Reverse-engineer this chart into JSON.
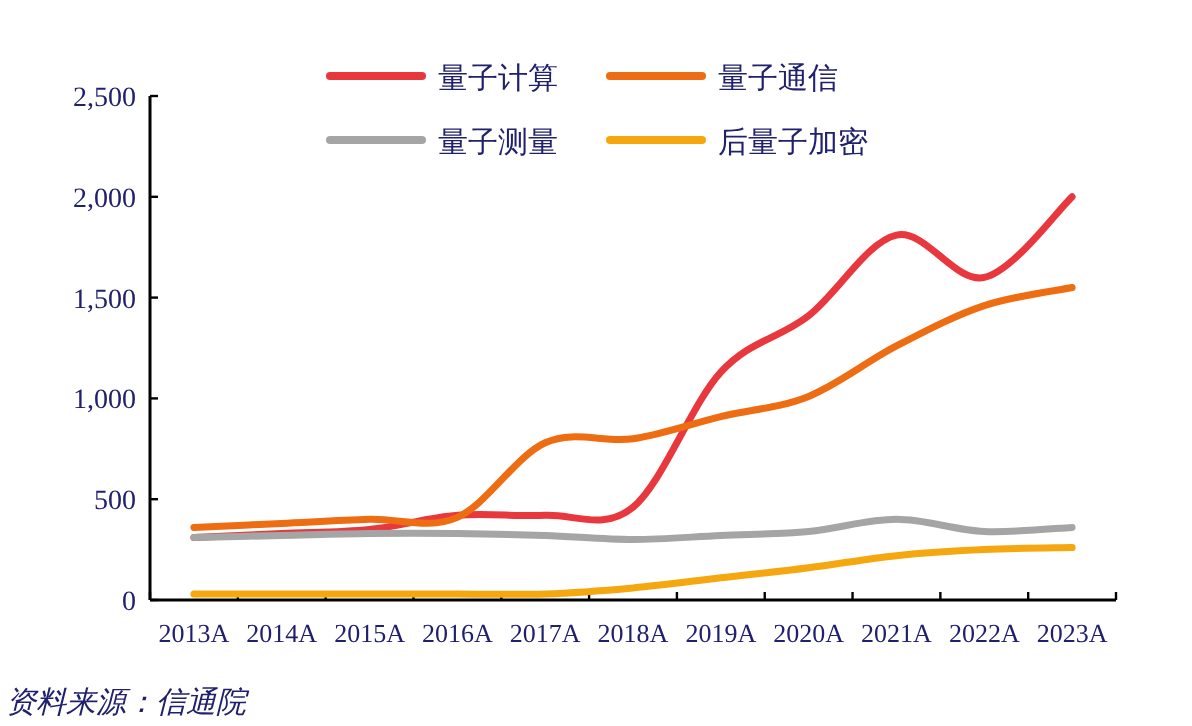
{
  "chart_data": {
    "type": "line",
    "categories": [
      "2013A",
      "2014A",
      "2015A",
      "2016A",
      "2017A",
      "2018A",
      "2019A",
      "2020A",
      "2021A",
      "2022A",
      "2023A"
    ],
    "series": [
      {
        "name": "量子计算",
        "color": "#e8383d",
        "values": [
          310,
          330,
          350,
          420,
          420,
          460,
          1130,
          1410,
          1810,
          1600,
          2000
        ]
      },
      {
        "name": "量子通信",
        "color": "#ee6c12",
        "values": [
          360,
          380,
          400,
          410,
          780,
          800,
          910,
          1010,
          1260,
          1460,
          1550
        ]
      },
      {
        "name": "量子测量",
        "color": "#a5a5a5",
        "values": [
          310,
          320,
          330,
          330,
          320,
          300,
          320,
          340,
          400,
          340,
          360
        ]
      },
      {
        "name": "后量子加密",
        "color": "#f5a70f",
        "values": [
          30,
          30,
          30,
          30,
          30,
          60,
          110,
          160,
          220,
          250,
          260
        ]
      }
    ],
    "ylim": [
      0,
      2500
    ],
    "yticks": [
      0,
      {
        "value": 500,
        "label": "500"
      },
      {
        "value": 1000,
        "label": "1,000"
      },
      {
        "value": 1500,
        "label": "1,500"
      },
      {
        "value": 2000,
        "label": "2,000"
      },
      {
        "value": 2500,
        "label": "2,500"
      }
    ],
    "grid": false,
    "legend": "top",
    "marker": "none",
    "line_style": "solid",
    "annotations": [
      "资料来源：信通院"
    ]
  }
}
